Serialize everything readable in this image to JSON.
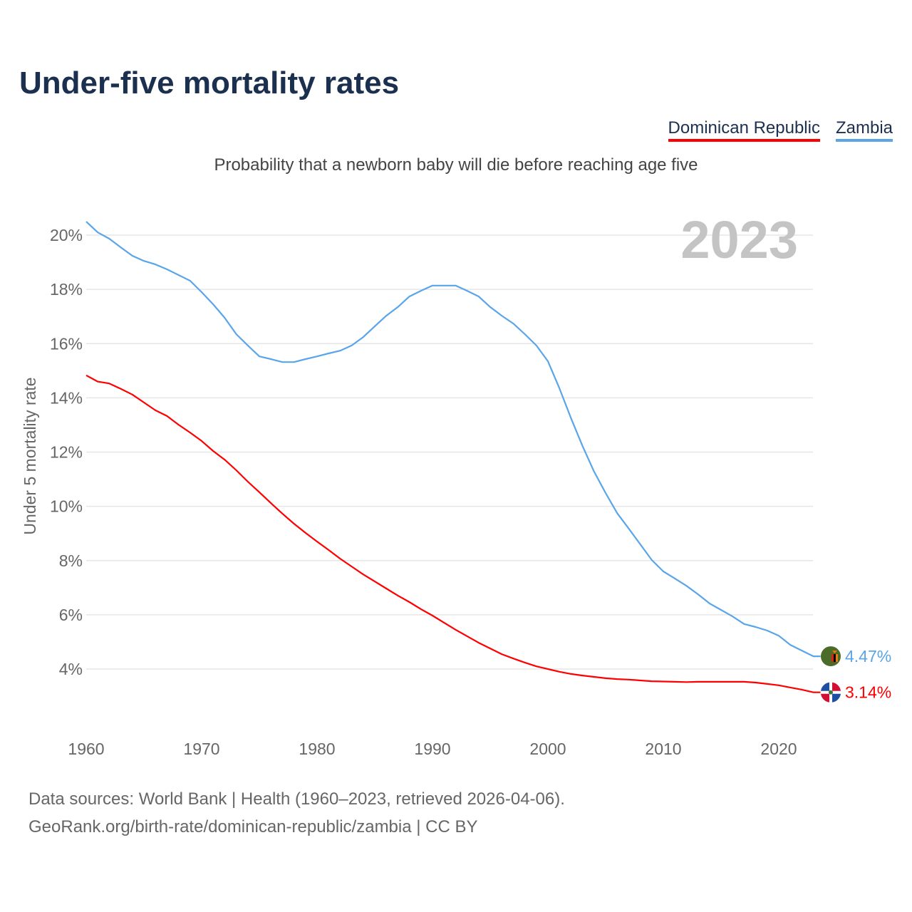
{
  "title": "Under-five mortality rates",
  "subtitle": "Probability that a newborn baby will die before reaching age five",
  "legend": [
    {
      "name": "Dominican Republic",
      "color": "#ff0000"
    },
    {
      "name": "Zambia",
      "color": "#5aa5ea"
    }
  ],
  "year_watermark": "2023",
  "sources": [
    "Data sources: World Bank | Health (1960–2023, retrieved 2026-04-06).",
    "GeoRank.org/birth-rate/dominican-republic/zambia | CC BY"
  ],
  "chart_data": {
    "type": "line",
    "title": "Under-five mortality rates",
    "xlabel": "",
    "ylabel": "Under 5 mortality rate",
    "xlim": [
      1960,
      2023
    ],
    "ylim": [
      2.5,
      20.5
    ],
    "xticks": [
      1960,
      1970,
      1980,
      1990,
      2000,
      2010,
      2020
    ],
    "xtick_labels": [
      "1960",
      "1970",
      "1980",
      "1990",
      "2000",
      "2010",
      "2020"
    ],
    "yticks": [
      4,
      6,
      8,
      10,
      12,
      14,
      16,
      18,
      20
    ],
    "ytick_labels": [
      "4%",
      "6%",
      "8%",
      "10%",
      "12%",
      "14%",
      "16%",
      "18%",
      "20%"
    ],
    "grid": true,
    "legend_position": "top-right",
    "x_start": 1960,
    "series": [
      {
        "name": "Zambia",
        "color": "#5aa5ea",
        "end_label": "4.47%",
        "values": [
          20.5,
          20.1,
          19.87,
          19.55,
          19.24,
          19.05,
          18.92,
          18.74,
          18.53,
          18.32,
          17.9,
          17.45,
          16.95,
          16.35,
          15.93,
          15.53,
          15.43,
          15.32,
          15.32,
          15.43,
          15.53,
          15.64,
          15.74,
          15.93,
          16.24,
          16.64,
          17.03,
          17.35,
          17.74,
          17.95,
          18.14,
          18.14,
          18.14,
          17.95,
          17.74,
          17.35,
          17.03,
          16.74,
          16.35,
          15.93,
          15.35,
          14.35,
          13.25,
          12.22,
          11.28,
          10.49,
          9.75,
          9.18,
          8.6,
          8.02,
          7.6,
          7.34,
          7.07,
          6.76,
          6.42,
          6.18,
          5.94,
          5.66,
          5.55,
          5.42,
          5.23,
          4.89,
          4.68,
          4.47
        ]
      },
      {
        "name": "Dominican Republic",
        "color": "#ff0000",
        "end_label": "3.14%",
        "values": [
          14.83,
          14.6,
          14.53,
          14.33,
          14.12,
          13.83,
          13.54,
          13.33,
          13.01,
          12.72,
          12.41,
          12.04,
          11.72,
          11.33,
          10.91,
          10.52,
          10.12,
          9.73,
          9.36,
          9.02,
          8.7,
          8.39,
          8.07,
          7.78,
          7.49,
          7.23,
          6.97,
          6.71,
          6.47,
          6.21,
          5.97,
          5.71,
          5.45,
          5.21,
          4.97,
          4.76,
          4.55,
          4.39,
          4.24,
          4.1,
          4.0,
          3.9,
          3.82,
          3.76,
          3.71,
          3.66,
          3.63,
          3.61,
          3.58,
          3.55,
          3.54,
          3.53,
          3.52,
          3.53,
          3.53,
          3.53,
          3.53,
          3.53,
          3.5,
          3.45,
          3.4,
          3.32,
          3.24,
          3.14
        ]
      }
    ]
  }
}
